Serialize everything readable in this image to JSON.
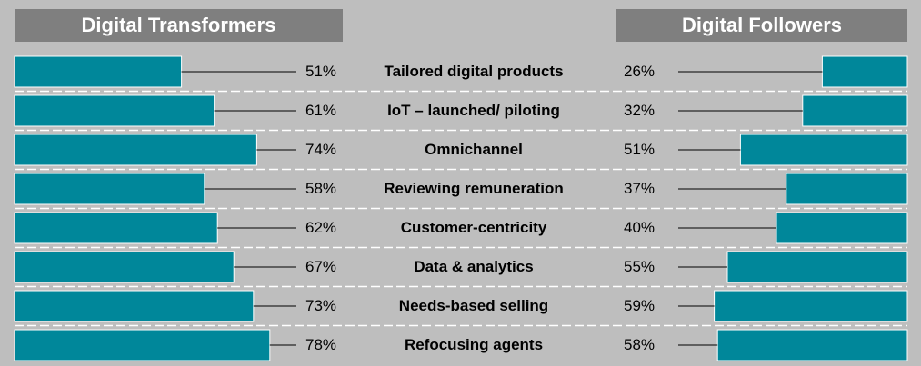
{
  "headers": {
    "left": "Digital Transformers",
    "right": "Digital Followers"
  },
  "colors": {
    "background": "#bebebe",
    "bar": "#00879a",
    "header": "#7f7f7f",
    "divider": "#ffffff"
  },
  "chart_data": {
    "type": "bar",
    "categories": [
      "Tailored digital products",
      "IoT – launched/ piloting",
      "Omnichannel",
      "Reviewing remuneration",
      "Customer-centricity",
      "Data & analytics",
      "Needs-based selling",
      "Refocusing agents"
    ],
    "series": [
      {
        "name": "Digital Transformers",
        "values": [
          51,
          61,
          74,
          58,
          62,
          67,
          73,
          78
        ],
        "labels": [
          "51%",
          "61%",
          "74%",
          "58%",
          "62%",
          "67%",
          "73%",
          "78%"
        ]
      },
      {
        "name": "Digital Followers",
        "values": [
          26,
          32,
          51,
          37,
          40,
          55,
          59,
          58
        ],
        "labels": [
          "26%",
          "32%",
          "51%",
          "37%",
          "40%",
          "55%",
          "59%",
          "58%"
        ]
      }
    ],
    "xlim": [
      0,
      100
    ],
    "grid": false,
    "legend": "none"
  }
}
